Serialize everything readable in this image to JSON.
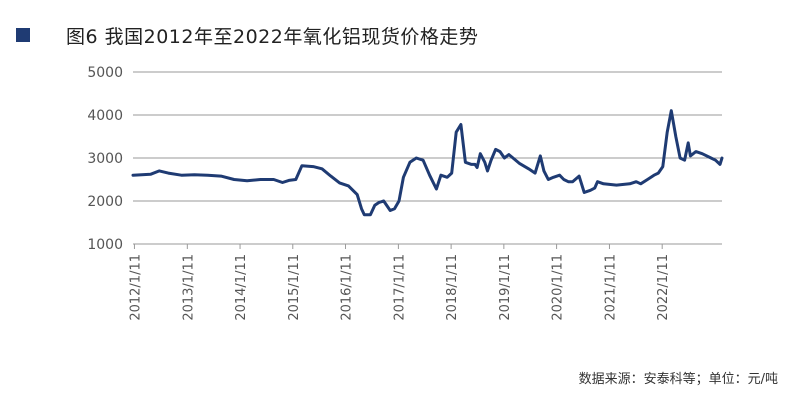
{
  "header": {
    "title": "图6  我国2012年至2022年氧化铝现货价格走势"
  },
  "footer": {
    "source": "数据来源：安泰科等；单位：元/吨"
  },
  "colors": {
    "title_marker": "#1f3b73",
    "line": "#1f3b73",
    "grid": "#9a9a9a",
    "text": "#555555"
  },
  "chart_data": {
    "type": "line",
    "title": "图6  我国2012年至2022年氧化铝现货价格走势",
    "xlabel": "",
    "ylabel": "",
    "ylim": [
      1000,
      5000
    ],
    "yticks": [
      1000,
      2000,
      3000,
      4000,
      5000
    ],
    "xlim": [
      "2012-01-01",
      "2023-03-01"
    ],
    "xticks": [
      {
        "date": "2012-01-11",
        "label": "2012/1/11"
      },
      {
        "date": "2013-01-11",
        "label": "2013/1/11"
      },
      {
        "date": "2014-01-11",
        "label": "2014/1/11"
      },
      {
        "date": "2015-01-11",
        "label": "2015/1/11"
      },
      {
        "date": "2016-01-11",
        "label": "2016/1/11"
      },
      {
        "date": "2017-01-11",
        "label": "2017/1/11"
      },
      {
        "date": "2018-01-11",
        "label": "2018/1/11"
      },
      {
        "date": "2019-01-11",
        "label": "2019/1/11"
      },
      {
        "date": "2020-01-11",
        "label": "2020/1/11"
      },
      {
        "date": "2021-01-11",
        "label": "2021/1/11"
      },
      {
        "date": "2022-01-11",
        "label": "2022/1/11"
      }
    ],
    "grid": "horizontal",
    "series": [
      {
        "name": "",
        "points": [
          [
            "2012-01-01",
            2600
          ],
          [
            "2012-05-01",
            2620
          ],
          [
            "2012-07-01",
            2700
          ],
          [
            "2012-09-01",
            2650
          ],
          [
            "2012-12-01",
            2600
          ],
          [
            "2013-03-01",
            2610
          ],
          [
            "2013-06-01",
            2600
          ],
          [
            "2013-09-01",
            2580
          ],
          [
            "2013-12-01",
            2500
          ],
          [
            "2014-03-01",
            2470
          ],
          [
            "2014-06-01",
            2500
          ],
          [
            "2014-09-01",
            2500
          ],
          [
            "2014-11-01",
            2430
          ],
          [
            "2014-12-15",
            2480
          ],
          [
            "2015-02-01",
            2500
          ],
          [
            "2015-03-15",
            2820
          ],
          [
            "2015-06-01",
            2800
          ],
          [
            "2015-08-01",
            2750
          ],
          [
            "2015-10-01",
            2580
          ],
          [
            "2015-12-01",
            2420
          ],
          [
            "2016-02-01",
            2350
          ],
          [
            "2016-04-01",
            2150
          ],
          [
            "2016-05-01",
            1820
          ],
          [
            "2016-05-20",
            1680
          ],
          [
            "2016-07-01",
            1680
          ],
          [
            "2016-08-01",
            1900
          ],
          [
            "2016-09-01",
            1970
          ],
          [
            "2016-10-01",
            2000
          ],
          [
            "2016-11-15",
            1780
          ],
          [
            "2016-12-15",
            1820
          ],
          [
            "2017-01-15",
            2000
          ],
          [
            "2017-02-15",
            2550
          ],
          [
            "2017-04-01",
            2900
          ],
          [
            "2017-05-15",
            3000
          ],
          [
            "2017-07-01",
            2950
          ],
          [
            "2017-08-15",
            2600
          ],
          [
            "2017-10-01",
            2280
          ],
          [
            "2017-11-01",
            2600
          ],
          [
            "2017-12-15",
            2550
          ],
          [
            "2018-01-15",
            2650
          ],
          [
            "2018-02-15",
            3600
          ],
          [
            "2018-03-20",
            3780
          ],
          [
            "2018-04-20",
            2900
          ],
          [
            "2018-06-01",
            2850
          ],
          [
            "2018-06-25",
            2850
          ],
          [
            "2018-07-10",
            2780
          ],
          [
            "2018-08-01",
            3100
          ],
          [
            "2018-09-01",
            2900
          ],
          [
            "2018-09-20",
            2700
          ],
          [
            "2018-10-15",
            2950
          ],
          [
            "2018-11-15",
            3200
          ],
          [
            "2018-12-15",
            3150
          ],
          [
            "2019-01-15",
            3000
          ],
          [
            "2019-02-15",
            3080
          ],
          [
            "2019-03-15",
            3000
          ],
          [
            "2019-05-01",
            2870
          ],
          [
            "2019-07-01",
            2750
          ],
          [
            "2019-08-15",
            2650
          ],
          [
            "2019-09-20",
            3050
          ],
          [
            "2019-10-15",
            2700
          ],
          [
            "2019-11-15",
            2500
          ],
          [
            "2019-12-20",
            2550
          ],
          [
            "2020-02-01",
            2600
          ],
          [
            "2020-03-01",
            2500
          ],
          [
            "2020-04-01",
            2450
          ],
          [
            "2020-05-01",
            2450
          ],
          [
            "2020-06-15",
            2580
          ],
          [
            "2020-07-20",
            2200
          ],
          [
            "2020-09-01",
            2250
          ],
          [
            "2020-10-01",
            2300
          ],
          [
            "2020-10-20",
            2450
          ],
          [
            "2020-12-01",
            2400
          ],
          [
            "2021-03-01",
            2370
          ],
          [
            "2021-06-01",
            2400
          ],
          [
            "2021-07-15",
            2450
          ],
          [
            "2021-08-15",
            2400
          ],
          [
            "2021-10-01",
            2500
          ],
          [
            "2021-11-15",
            2600
          ],
          [
            "2021-12-15",
            2650
          ],
          [
            "2022-01-15",
            2800
          ],
          [
            "2022-02-15",
            3600
          ],
          [
            "2022-03-15",
            4100
          ],
          [
            "2022-04-15",
            3500
          ],
          [
            "2022-05-15",
            3000
          ],
          [
            "2022-06-15",
            2950
          ],
          [
            "2022-07-10",
            3350
          ],
          [
            "2022-07-25",
            3050
          ],
          [
            "2022-09-01",
            3150
          ],
          [
            "2022-10-15",
            3100
          ],
          [
            "2022-12-15",
            3000
          ],
          [
            "2023-01-15",
            2950
          ],
          [
            "2023-02-15",
            2850
          ],
          [
            "2023-03-01",
            3000
          ]
        ]
      }
    ]
  }
}
